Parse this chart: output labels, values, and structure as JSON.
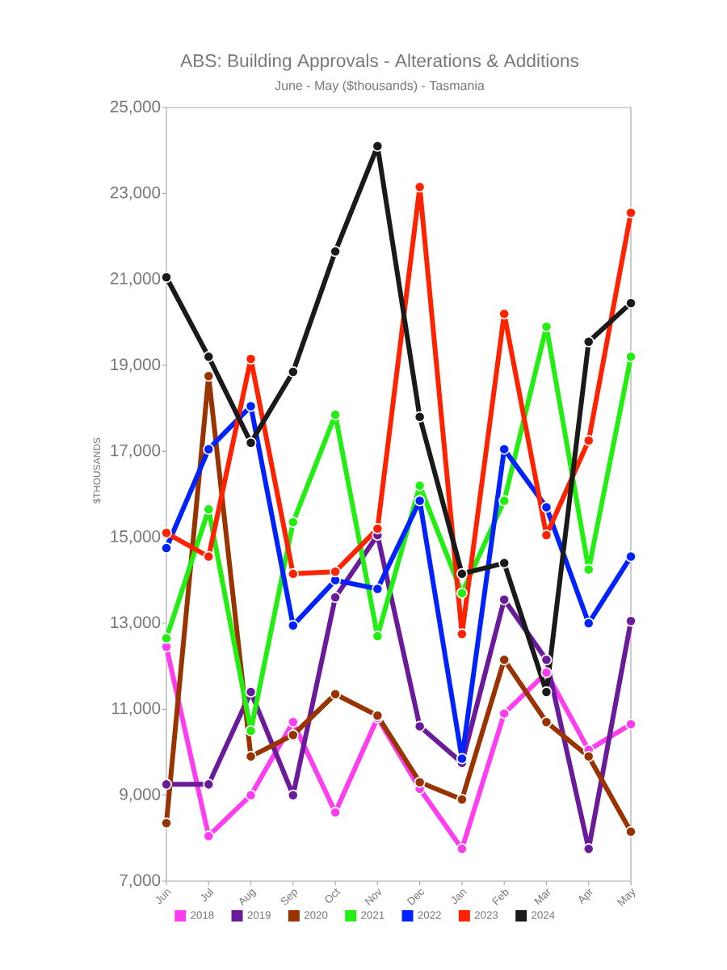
{
  "chart_data": {
    "type": "line",
    "title": "ABS: Building Approvals - Alterations & Additions",
    "subtitle": "June - May ($thousands) - Tasmania",
    "ylabel": "$THOUSANDS",
    "categories": [
      "Jun",
      "Jul",
      "Aug",
      "Sep",
      "Oct",
      "Nov",
      "Dec",
      "Jan",
      "Feb",
      "Mar",
      "Apr",
      "May"
    ],
    "series": [
      {
        "name": "2018",
        "color": "#ff3df0",
        "values": [
          12450,
          8050,
          9000,
          10700,
          8600,
          10800,
          9150,
          7750,
          10900,
          11850,
          10050,
          10650
        ]
      },
      {
        "name": "2019",
        "color": "#6a1b9a",
        "values": [
          9250,
          9250,
          11400,
          9000,
          13600,
          15050,
          10600,
          9750,
          13550,
          12150,
          7750,
          13050
        ]
      },
      {
        "name": "2020",
        "color": "#993300",
        "values": [
          8350,
          18750,
          9900,
          10400,
          11350,
          10850,
          9300,
          8900,
          12150,
          10700,
          9900,
          8150
        ]
      },
      {
        "name": "2021",
        "color": "#22ee11",
        "values": [
          12650,
          15650,
          10500,
          15350,
          17850,
          12700,
          16200,
          13700,
          15850,
          19900,
          14250,
          19200
        ]
      },
      {
        "name": "2022",
        "color": "#0022ff",
        "values": [
          14750,
          17050,
          18050,
          12950,
          14000,
          13800,
          15850,
          9850,
          17050,
          15700,
          13000,
          14550
        ]
      },
      {
        "name": "2023",
        "color": "#ff2200",
        "values": [
          15100,
          14550,
          19150,
          14150,
          14200,
          15200,
          23150,
          12750,
          20200,
          15050,
          17250,
          22550
        ]
      },
      {
        "name": "2024",
        "color": "#1a1a1a",
        "values": [
          21050,
          19200,
          17200,
          18850,
          21650,
          24100,
          17800,
          14150,
          14400,
          11400,
          19550,
          20450
        ]
      }
    ],
    "ylim": [
      7000,
      25000
    ],
    "yticks": [
      {
        "value": 7000,
        "label": "7,000"
      },
      {
        "value": 9000,
        "label": "9,000"
      },
      {
        "value": 11000,
        "label": "11,000"
      },
      {
        "value": 13000,
        "label": "13,000"
      },
      {
        "value": 15000,
        "label": "15,000"
      },
      {
        "value": 17000,
        "label": "17,000"
      },
      {
        "value": 19000,
        "label": "19,000"
      },
      {
        "value": 21000,
        "label": "21,000"
      },
      {
        "value": 23000,
        "label": "23,000"
      },
      {
        "value": 25000,
        "label": "25,000"
      }
    ],
    "grid": false,
    "legend": "bottom",
    "marker": "circle",
    "line_style": "solid"
  }
}
